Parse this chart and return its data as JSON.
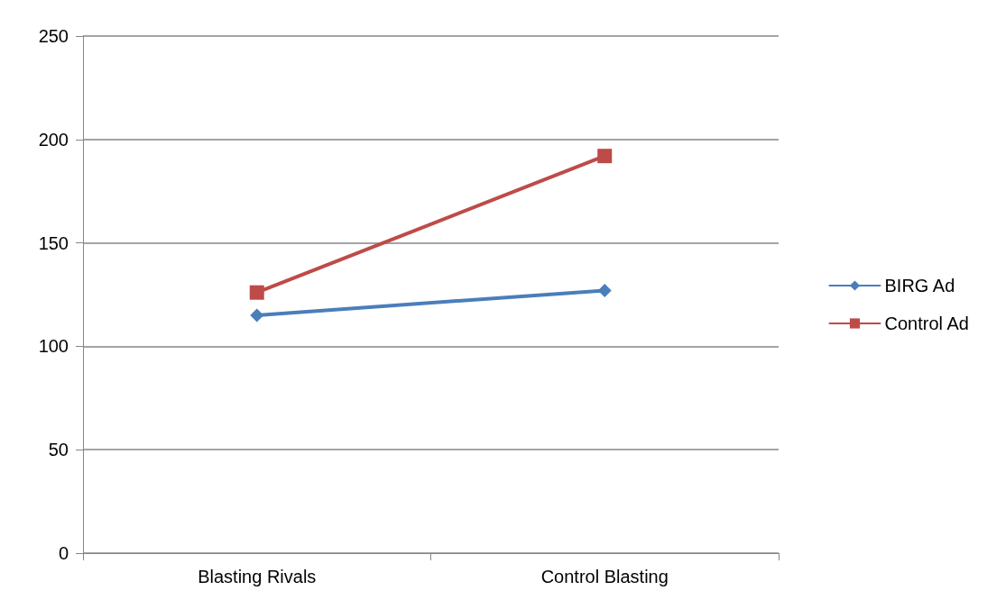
{
  "chart_data": {
    "type": "line",
    "categories": [
      "Blasting Rivals",
      "Control Blasting"
    ],
    "series": [
      {
        "name": "BIRG Ad",
        "color": "#4a7ebb",
        "values": [
          115,
          127
        ],
        "marker": "diamond"
      },
      {
        "name": "Control Ad",
        "color": "#be4b48",
        "values": [
          126,
          192
        ],
        "marker": "square"
      }
    ],
    "ylim": [
      0,
      250
    ],
    "yticks": [
      0,
      50,
      100,
      150,
      200,
      250
    ],
    "grid": "y",
    "legend": "right",
    "line_style": "solid"
  }
}
